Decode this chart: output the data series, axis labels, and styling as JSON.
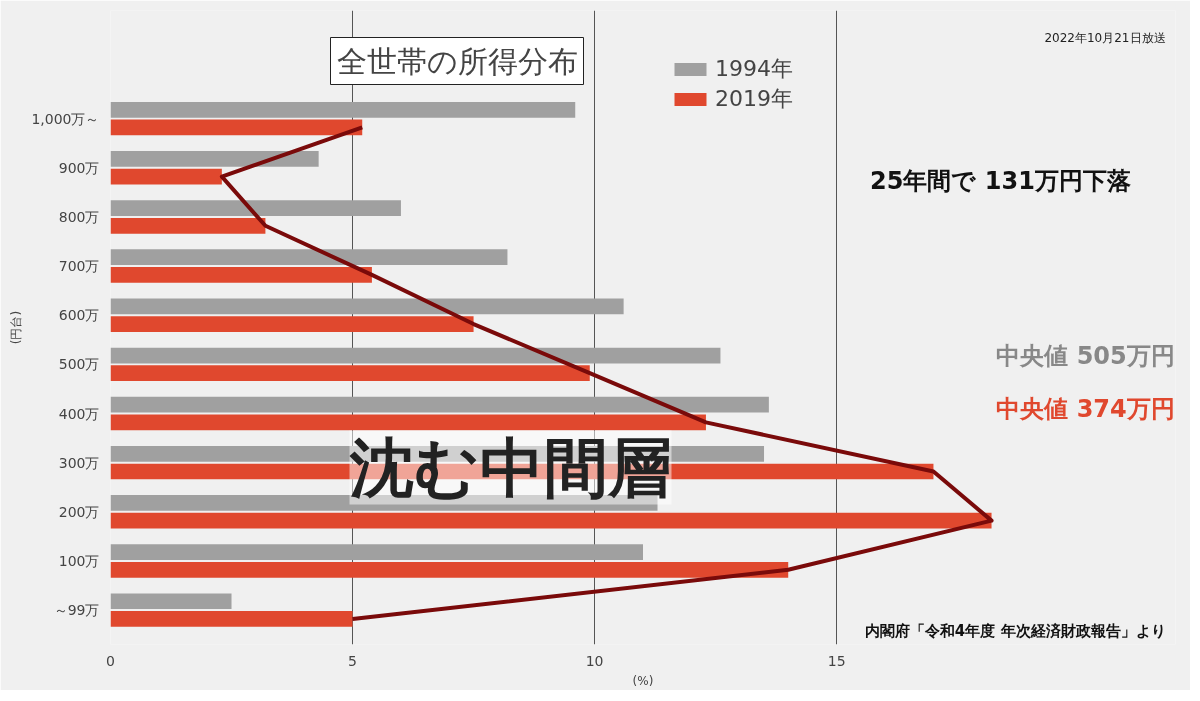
{
  "chart_data": {
    "type": "bar",
    "orientation": "horizontal",
    "title": "全世帯の所得分布",
    "xlabel": "(%)",
    "ylabel": "(円台)",
    "categories": [
      "1,000万～",
      "900万",
      "800万",
      "700万",
      "600万",
      "500万",
      "400万",
      "300万",
      "200万",
      "100万",
      "～99万"
    ],
    "series": [
      {
        "name": "1994年",
        "color": "#a0a0a0",
        "values": [
          9.6,
          4.3,
          6.0,
          8.2,
          10.6,
          12.6,
          13.6,
          13.5,
          11.3,
          11.0,
          2.5
        ]
      },
      {
        "name": "2019年",
        "color": "#e0482e",
        "values": [
          5.2,
          2.3,
          3.2,
          5.4,
          7.5,
          9.9,
          12.3,
          17.0,
          18.2,
          14.0,
          5.0
        ]
      },
      {
        "type": "line",
        "color": "#7a0a0a",
        "values": [
          5.2,
          2.3,
          3.2,
          5.4,
          7.5,
          9.9,
          12.3,
          17.0,
          18.2,
          14.0,
          5.0
        ]
      }
    ],
    "xlim": [
      0,
      22
    ],
    "xticks": [
      0,
      5,
      10,
      15
    ],
    "grid": "x",
    "legend": "top",
    "annotations": [
      "25年間で 131万円下落",
      "中央値 505万円",
      "中央値 374万円",
      "沈む中間層",
      "内閣府「令和4年度 年次経済財政報告」より",
      "2022年10月21日放送"
    ]
  }
}
